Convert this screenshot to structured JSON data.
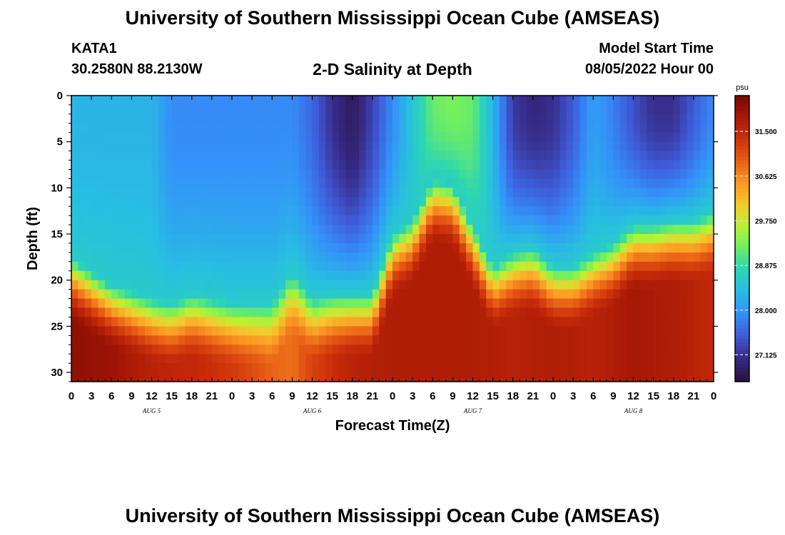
{
  "header": {
    "title": "University of Southern Mississippi Ocean Cube (AMSEAS)",
    "station": "KATA1",
    "coords": "30.2580N  88.2130W",
    "subtitle": "2-D Salinity at Depth",
    "start_label": "Model Start Time",
    "start_value": "08/05/2022 Hour 00"
  },
  "footer": {
    "title": "University of Southern Mississippi Ocean Cube (AMSEAS)"
  },
  "chart_data": {
    "type": "heatmap",
    "title": "2-D Salinity at Depth",
    "xlabel": "Forecast Time(Z)",
    "ylabel": "Depth (ft)",
    "x_tick_labels": [
      "0",
      "3",
      "6",
      "9",
      "12",
      "15",
      "18",
      "21",
      "0",
      "3",
      "6",
      "9",
      "12",
      "15",
      "18",
      "21",
      "0",
      "3",
      "6",
      "9",
      "12",
      "15",
      "18",
      "21",
      "0",
      "3",
      "6",
      "9",
      "12",
      "15",
      "18",
      "21",
      "0"
    ],
    "date_labels": [
      {
        "hour": 12,
        "label": "AUG 5"
      },
      {
        "hour": 36,
        "label": "AUG 6"
      },
      {
        "hour": 60,
        "label": "AUG 7"
      },
      {
        "hour": 84,
        "label": "AUG 8"
      }
    ],
    "x_range_hours": [
      0,
      96
    ],
    "y_ticks": [
      0,
      5,
      10,
      15,
      20,
      25,
      30
    ],
    "y_range_ft": [
      0,
      31
    ],
    "colorbar": {
      "unit": "psu",
      "ticks": [
        "31.500",
        "30.625",
        "29.750",
        "28.875",
        "28.000",
        "27.125"
      ],
      "tick_values": [
        31.5,
        30.625,
        29.75,
        28.875,
        28.0,
        27.125
      ],
      "range": [
        26.6,
        32.2
      ]
    },
    "surface_values_psu": {
      "hours": [
        0,
        6,
        12,
        15,
        18,
        21,
        24,
        30,
        33,
        36,
        39,
        42,
        45,
        48,
        51,
        54,
        57,
        60,
        63,
        66,
        69,
        72,
        75,
        78,
        81,
        84,
        87,
        90,
        93,
        96
      ],
      "values": [
        28.3,
        28.3,
        28.3,
        27.9,
        27.9,
        27.9,
        27.9,
        27.9,
        27.9,
        27.6,
        27.1,
        26.8,
        27.3,
        27.9,
        28.5,
        29.2,
        29.3,
        29.2,
        28.3,
        27.2,
        27.0,
        27.1,
        27.5,
        28.1,
        27.8,
        27.4,
        27.1,
        27.1,
        27.5,
        27.9
      ]
    },
    "bottom_layer_top_ft": {
      "hours": [
        0,
        6,
        12,
        15,
        18,
        21,
        24,
        30,
        33,
        36,
        39,
        42,
        45,
        48,
        51,
        54,
        57,
        60,
        63,
        66,
        69,
        72,
        75,
        78,
        81,
        84,
        87,
        90,
        93,
        96
      ],
      "values": [
        17.5,
        20.5,
        22.0,
        22.5,
        21.5,
        22.0,
        22.5,
        22.5,
        19.0,
        22.0,
        21.5,
        21.5,
        21.5,
        15.0,
        13.5,
        9.0,
        9.5,
        14.0,
        18.5,
        17.0,
        16.5,
        18.5,
        18.5,
        17.0,
        16.0,
        14.0,
        14.0,
        13.5,
        13.5,
        12.5
      ]
    },
    "deep_values_psu": {
      "hours": [
        0,
        6,
        12,
        18,
        24,
        30,
        33,
        36,
        42,
        48,
        54,
        60,
        66,
        72,
        78,
        84,
        90,
        96
      ],
      "values": [
        32.0,
        31.9,
        31.6,
        31.5,
        31.3,
        30.9,
        30.8,
        31.2,
        31.6,
        31.7,
        31.7,
        31.7,
        31.6,
        31.7,
        31.6,
        31.8,
        31.7,
        31.5
      ]
    }
  }
}
